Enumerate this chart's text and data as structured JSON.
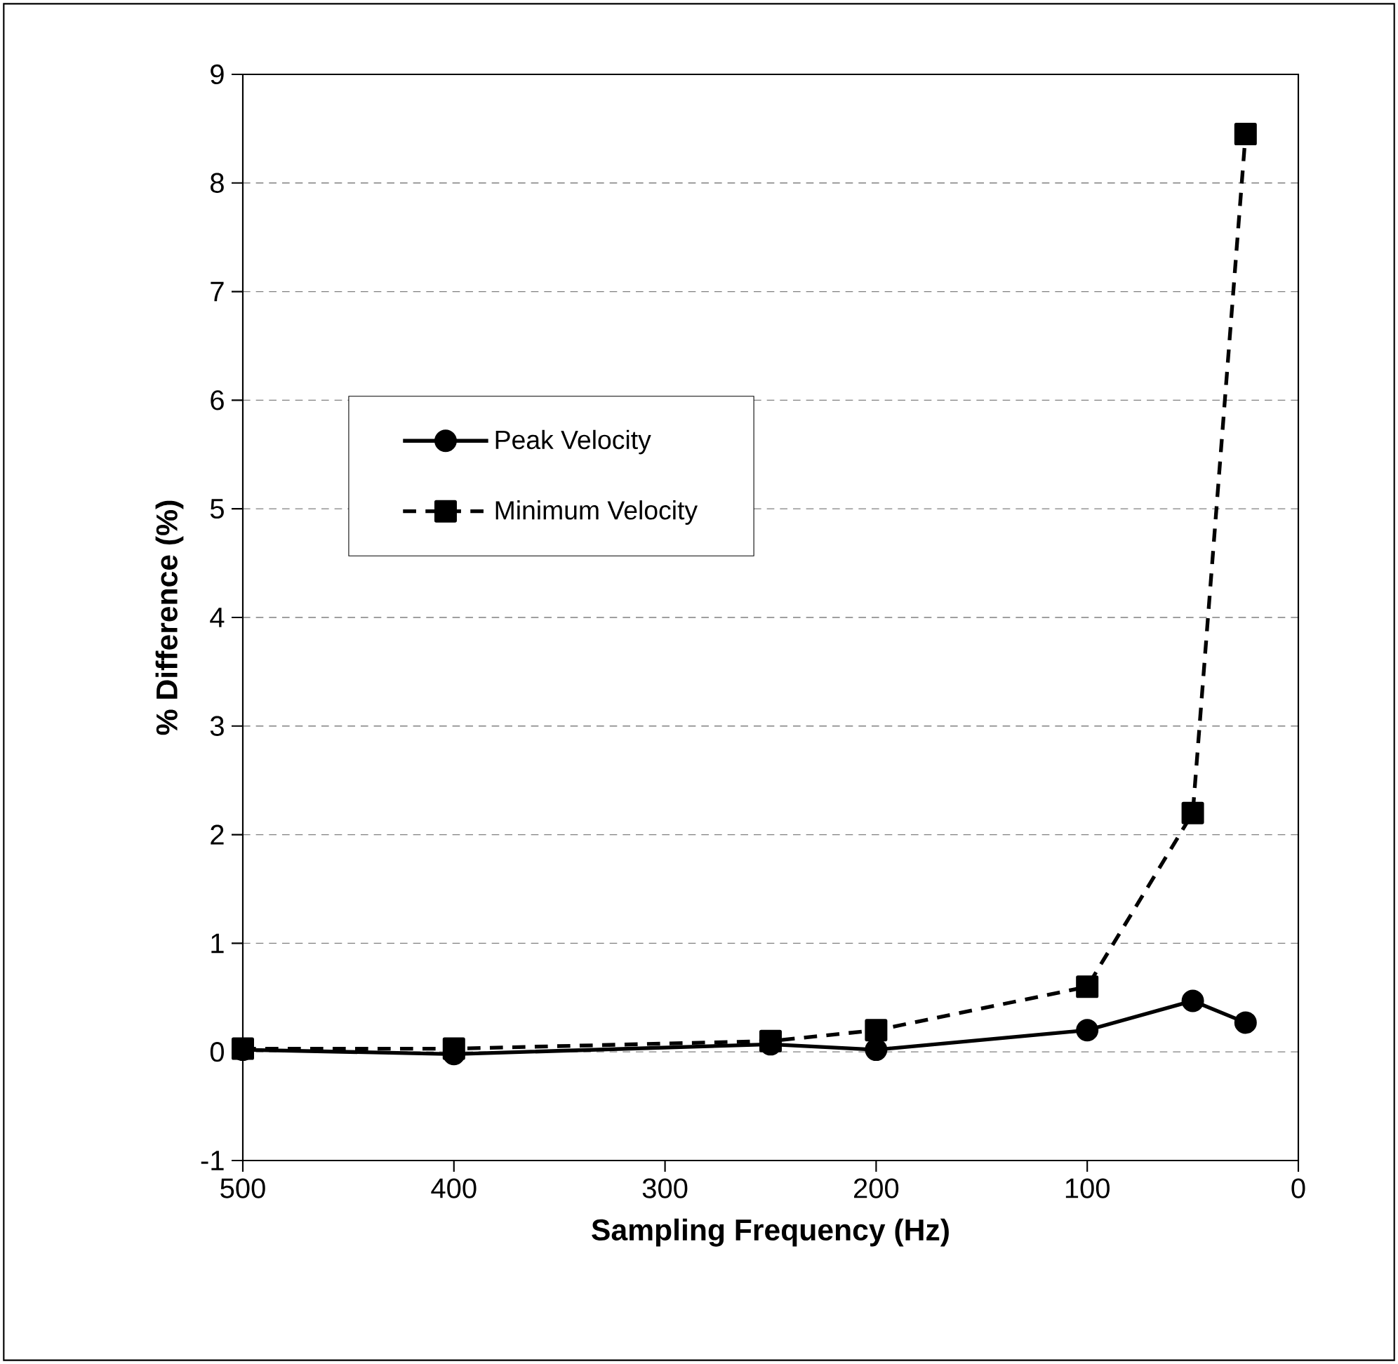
{
  "chart_data": {
    "type": "line",
    "xlabel": "Sampling Frequency (Hz)",
    "ylabel": "% Difference (%)",
    "x": [
      500,
      400,
      250,
      200,
      100,
      50,
      25
    ],
    "series": [
      {
        "name": "Peak Velocity",
        "color": "#000000",
        "marker": "circle",
        "line_style": "solid",
        "values": [
          0.02,
          -0.02,
          0.07,
          0.02,
          0.2,
          0.47,
          0.27
        ]
      },
      {
        "name": "Minimum Velocity",
        "color": "#000000",
        "marker": "square",
        "line_style": "dashed",
        "values": [
          0.03,
          0.03,
          0.1,
          0.2,
          0.6,
          2.2,
          8.45
        ]
      }
    ],
    "xlim": [
      500,
      0
    ],
    "xticks": [
      500,
      400,
      300,
      200,
      100,
      0
    ],
    "ylim": [
      -1,
      9
    ],
    "yticks": [
      -1,
      0,
      1,
      2,
      3,
      4,
      5,
      6,
      7,
      8,
      9
    ],
    "grid": "y",
    "legend": "left"
  }
}
